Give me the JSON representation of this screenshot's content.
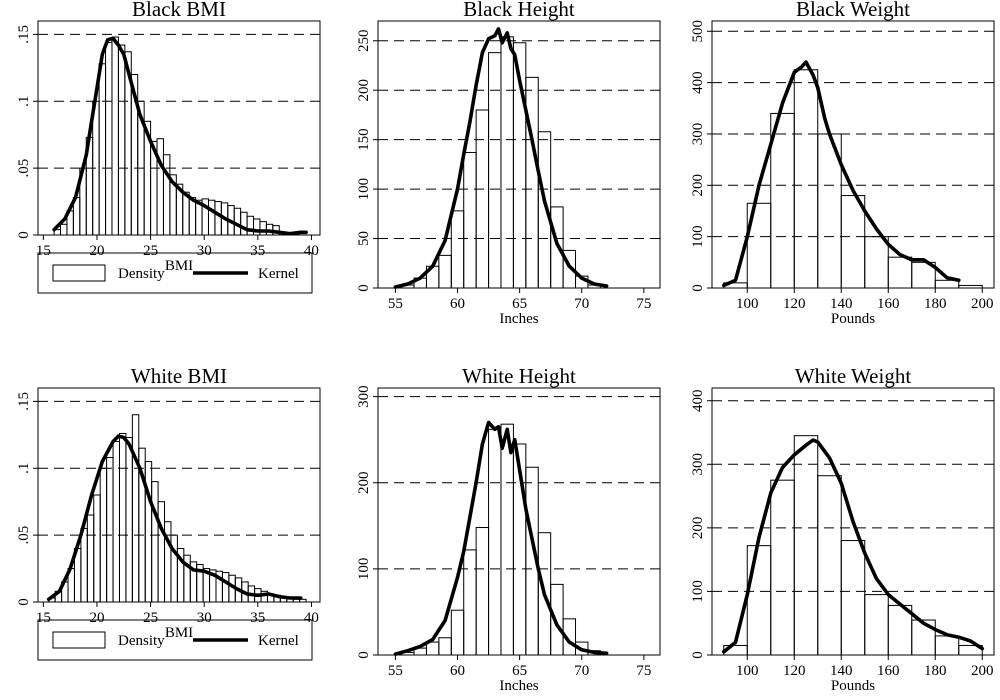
{
  "chart_data": [
    {
      "id": "black-bmi",
      "type": "bar",
      "title": "Black BMI",
      "xlabel": "BMI",
      "ylabel": "",
      "xlim": [
        14.5,
        40.8
      ],
      "ylim": [
        0,
        0.16
      ],
      "xticks": [
        15,
        20,
        25,
        30,
        35,
        40
      ],
      "xtick_labels": [
        "15",
        "20",
        "25",
        "30",
        "35",
        "40"
      ],
      "yticks": [
        0,
        0.05,
        0.1,
        0.15
      ],
      "ytick_labels": [
        "0",
        ".05",
        ".1",
        ".15"
      ],
      "grid": "horizontal dashed",
      "bins": {
        "start": 16,
        "width": 0.6,
        "values": [
          0.004,
          0.008,
          0.018,
          0.028,
          0.05,
          0.073,
          0.1,
          0.128,
          0.144,
          0.148,
          0.142,
          0.137,
          0.12,
          0.1,
          0.085,
          0.07,
          0.072,
          0.06,
          0.045,
          0.038,
          0.032,
          0.028,
          0.026,
          0.027,
          0.026,
          0.025,
          0.024,
          0.022,
          0.02,
          0.017,
          0.014,
          0.012,
          0.01,
          0.008,
          0.007
        ]
      },
      "series": [
        {
          "name": "Kernel",
          "x": [
            16,
            17,
            18,
            19,
            19.5,
            20,
            20.5,
            21,
            21.5,
            22,
            22.5,
            23,
            23.5,
            24,
            25,
            26,
            27,
            28,
            29,
            30,
            31,
            32,
            33,
            34,
            35,
            36,
            37,
            38,
            39,
            39.5
          ],
          "y": [
            0.004,
            0.012,
            0.028,
            0.06,
            0.085,
            0.11,
            0.135,
            0.146,
            0.147,
            0.142,
            0.135,
            0.12,
            0.105,
            0.09,
            0.07,
            0.052,
            0.04,
            0.032,
            0.026,
            0.022,
            0.017,
            0.012,
            0.008,
            0.004,
            0.003,
            0.003,
            0.002,
            0.001,
            0.002,
            0.002
          ]
        }
      ],
      "legend": {
        "position": "bottom",
        "items": [
          "Density",
          "Kernel"
        ]
      }
    },
    {
      "id": "black-height",
      "type": "bar",
      "title": "Black Height",
      "xlabel": "Inches",
      "ylabel": "",
      "xlim": [
        53.6,
        76.3
      ],
      "ylim": [
        0,
        270
      ],
      "xticks": [
        55,
        60,
        65,
        70,
        75
      ],
      "xtick_labels": [
        "55",
        "60",
        "65",
        "70",
        "75"
      ],
      "yticks": [
        0,
        50,
        100,
        150,
        200,
        250
      ],
      "ytick_labels": [
        "0",
        "50",
        "100",
        "150",
        "200",
        "250"
      ],
      "grid": "horizontal dashed",
      "bins": {
        "start": 55.5,
        "width": 1,
        "values": [
          3,
          10,
          22,
          33,
          78,
          137,
          180,
          238,
          254,
          248,
          213,
          158,
          82,
          38,
          12,
          3
        ]
      },
      "series": [
        {
          "name": "Kernel",
          "x": [
            55,
            56,
            57,
            58,
            59,
            60,
            60.5,
            61,
            61.5,
            62,
            62.5,
            63,
            63.3,
            63.6,
            64,
            64.3,
            64.6,
            65,
            65.5,
            66,
            66.5,
            67,
            68,
            69,
            70,
            71,
            72
          ],
          "y": [
            1,
            4,
            10,
            22,
            48,
            100,
            135,
            168,
            205,
            238,
            252,
            255,
            262,
            248,
            258,
            242,
            236,
            210,
            180,
            150,
            118,
            88,
            45,
            22,
            10,
            4,
            2
          ]
        }
      ],
      "legend": null
    },
    {
      "id": "black-weight",
      "type": "bar",
      "title": "Black Weight",
      "xlabel": "Pounds",
      "ylabel": "",
      "xlim": [
        85,
        205
      ],
      "ylim": [
        0,
        520
      ],
      "xticks": [
        100,
        120,
        140,
        160,
        180,
        200
      ],
      "xtick_labels": [
        "100",
        "120",
        "140",
        "160",
        "180",
        "200"
      ],
      "yticks": [
        0,
        100,
        200,
        300,
        400,
        500
      ],
      "ytick_labels": [
        "0",
        "100",
        "200",
        "300",
        "400",
        "500"
      ],
      "grid": "horizontal dashed",
      "bins": {
        "start": 90,
        "width": 10,
        "values": [
          10,
          165,
          340,
          425,
          300,
          180,
          100,
          60,
          50,
          15,
          5
        ]
      },
      "series": [
        {
          "name": "Kernel",
          "x": [
            90,
            95,
            100,
            105,
            110,
            115,
            120,
            123,
            125,
            128,
            130,
            133,
            135,
            140,
            145,
            150,
            155,
            160,
            165,
            170,
            175,
            180,
            185,
            190
          ],
          "y": [
            5,
            15,
            100,
            200,
            280,
            360,
            420,
            430,
            440,
            415,
            390,
            330,
            300,
            240,
            190,
            150,
            115,
            85,
            65,
            55,
            55,
            40,
            20,
            15
          ]
        }
      ],
      "legend": null
    },
    {
      "id": "white-bmi",
      "type": "bar",
      "title": "White BMI",
      "xlabel": "BMI",
      "ylabel": "",
      "xlim": [
        14.5,
        40.8
      ],
      "ylim": [
        0,
        0.16
      ],
      "xticks": [
        15,
        20,
        25,
        30,
        35,
        40
      ],
      "xtick_labels": [
        "15",
        "20",
        "25",
        "30",
        "35",
        "40"
      ],
      "yticks": [
        0,
        0.05,
        0.1,
        0.15
      ],
      "ytick_labels": [
        "0",
        ".05",
        ".1",
        ".15"
      ],
      "grid": "horizontal dashed",
      "bins": {
        "start": 15.5,
        "width": 0.6,
        "values": [
          0.003,
          0.008,
          0.015,
          0.025,
          0.04,
          0.055,
          0.065,
          0.08,
          0.1,
          0.108,
          0.12,
          0.126,
          0.123,
          0.14,
          0.115,
          0.105,
          0.09,
          0.075,
          0.06,
          0.05,
          0.04,
          0.035,
          0.03,
          0.028,
          0.025,
          0.024,
          0.023,
          0.022,
          0.02,
          0.018,
          0.015,
          0.012,
          0.01,
          0.008,
          0.006,
          0.005,
          0.004,
          0.003,
          0.002,
          0.002
        ]
      },
      "series": [
        {
          "name": "Kernel",
          "x": [
            15.5,
            16.5,
            17.5,
            18.5,
            19.5,
            20.5,
            21.5,
            22,
            22.5,
            23,
            24,
            25,
            26,
            27,
            28,
            29,
            30,
            31,
            32,
            33,
            34,
            35,
            36,
            37,
            38,
            39
          ],
          "y": [
            0.002,
            0.008,
            0.025,
            0.05,
            0.08,
            0.105,
            0.12,
            0.124,
            0.123,
            0.118,
            0.1,
            0.075,
            0.055,
            0.04,
            0.03,
            0.024,
            0.023,
            0.02,
            0.015,
            0.01,
            0.006,
            0.005,
            0.006,
            0.004,
            0.003,
            0.003
          ]
        }
      ],
      "legend": {
        "position": "bottom",
        "items": [
          "Density",
          "Kernel"
        ]
      }
    },
    {
      "id": "white-height",
      "type": "bar",
      "title": "White Height",
      "xlabel": "Inches",
      "ylabel": "",
      "xlim": [
        53.6,
        76.3
      ],
      "ylim": [
        0,
        310
      ],
      "xticks": [
        55,
        60,
        65,
        70,
        75
      ],
      "xtick_labels": [
        "55",
        "60",
        "65",
        "70",
        "75"
      ],
      "yticks": [
        0,
        100,
        200,
        300
      ],
      "ytick_labels": [
        "0",
        "100",
        "200",
        "300"
      ],
      "grid": "horizontal dashed",
      "bins": {
        "start": 55.5,
        "width": 1,
        "values": [
          3,
          8,
          15,
          20,
          52,
          122,
          148,
          262,
          268,
          245,
          218,
          142,
          82,
          42,
          15,
          5
        ]
      },
      "series": [
        {
          "name": "Kernel",
          "x": [
            55,
            56,
            57,
            58,
            59,
            60,
            60.5,
            61,
            61.5,
            62,
            62.5,
            63,
            63.3,
            63.6,
            64,
            64.3,
            64.6,
            65,
            65.5,
            66,
            66.5,
            67,
            68,
            69,
            70,
            71,
            72
          ],
          "y": [
            1,
            5,
            10,
            18,
            40,
            90,
            120,
            160,
            200,
            245,
            270,
            262,
            265,
            240,
            262,
            235,
            250,
            215,
            170,
            135,
            100,
            70,
            35,
            15,
            6,
            3,
            2
          ]
        }
      ],
      "legend": null
    },
    {
      "id": "white-weight",
      "type": "bar",
      "title": "White Weight",
      "xlabel": "Pounds",
      "ylabel": "",
      "xlim": [
        85,
        205
      ],
      "ylim": [
        0,
        420
      ],
      "xticks": [
        100,
        120,
        140,
        160,
        180,
        200
      ],
      "xtick_labels": [
        "100",
        "120",
        "140",
        "160",
        "180",
        "200"
      ],
      "yticks": [
        0,
        100,
        200,
        300,
        400
      ],
      "ytick_labels": [
        "0",
        "100",
        "200",
        "300",
        "400"
      ],
      "grid": "horizontal dashed",
      "bins": {
        "start": 90,
        "width": 10,
        "values": [
          15,
          172,
          275,
          345,
          282,
          180,
          95,
          78,
          55,
          30,
          15
        ]
      },
      "series": [
        {
          "name": "Kernel",
          "x": [
            90,
            95,
            100,
            105,
            110,
            115,
            120,
            125,
            128,
            130,
            135,
            140,
            145,
            150,
            155,
            160,
            165,
            170,
            175,
            180,
            185,
            190,
            195,
            200
          ],
          "y": [
            5,
            20,
            95,
            185,
            255,
            295,
            315,
            330,
            338,
            335,
            310,
            270,
            210,
            160,
            120,
            95,
            80,
            65,
            50,
            40,
            32,
            28,
            22,
            10
          ]
        }
      ],
      "legend": null
    }
  ]
}
